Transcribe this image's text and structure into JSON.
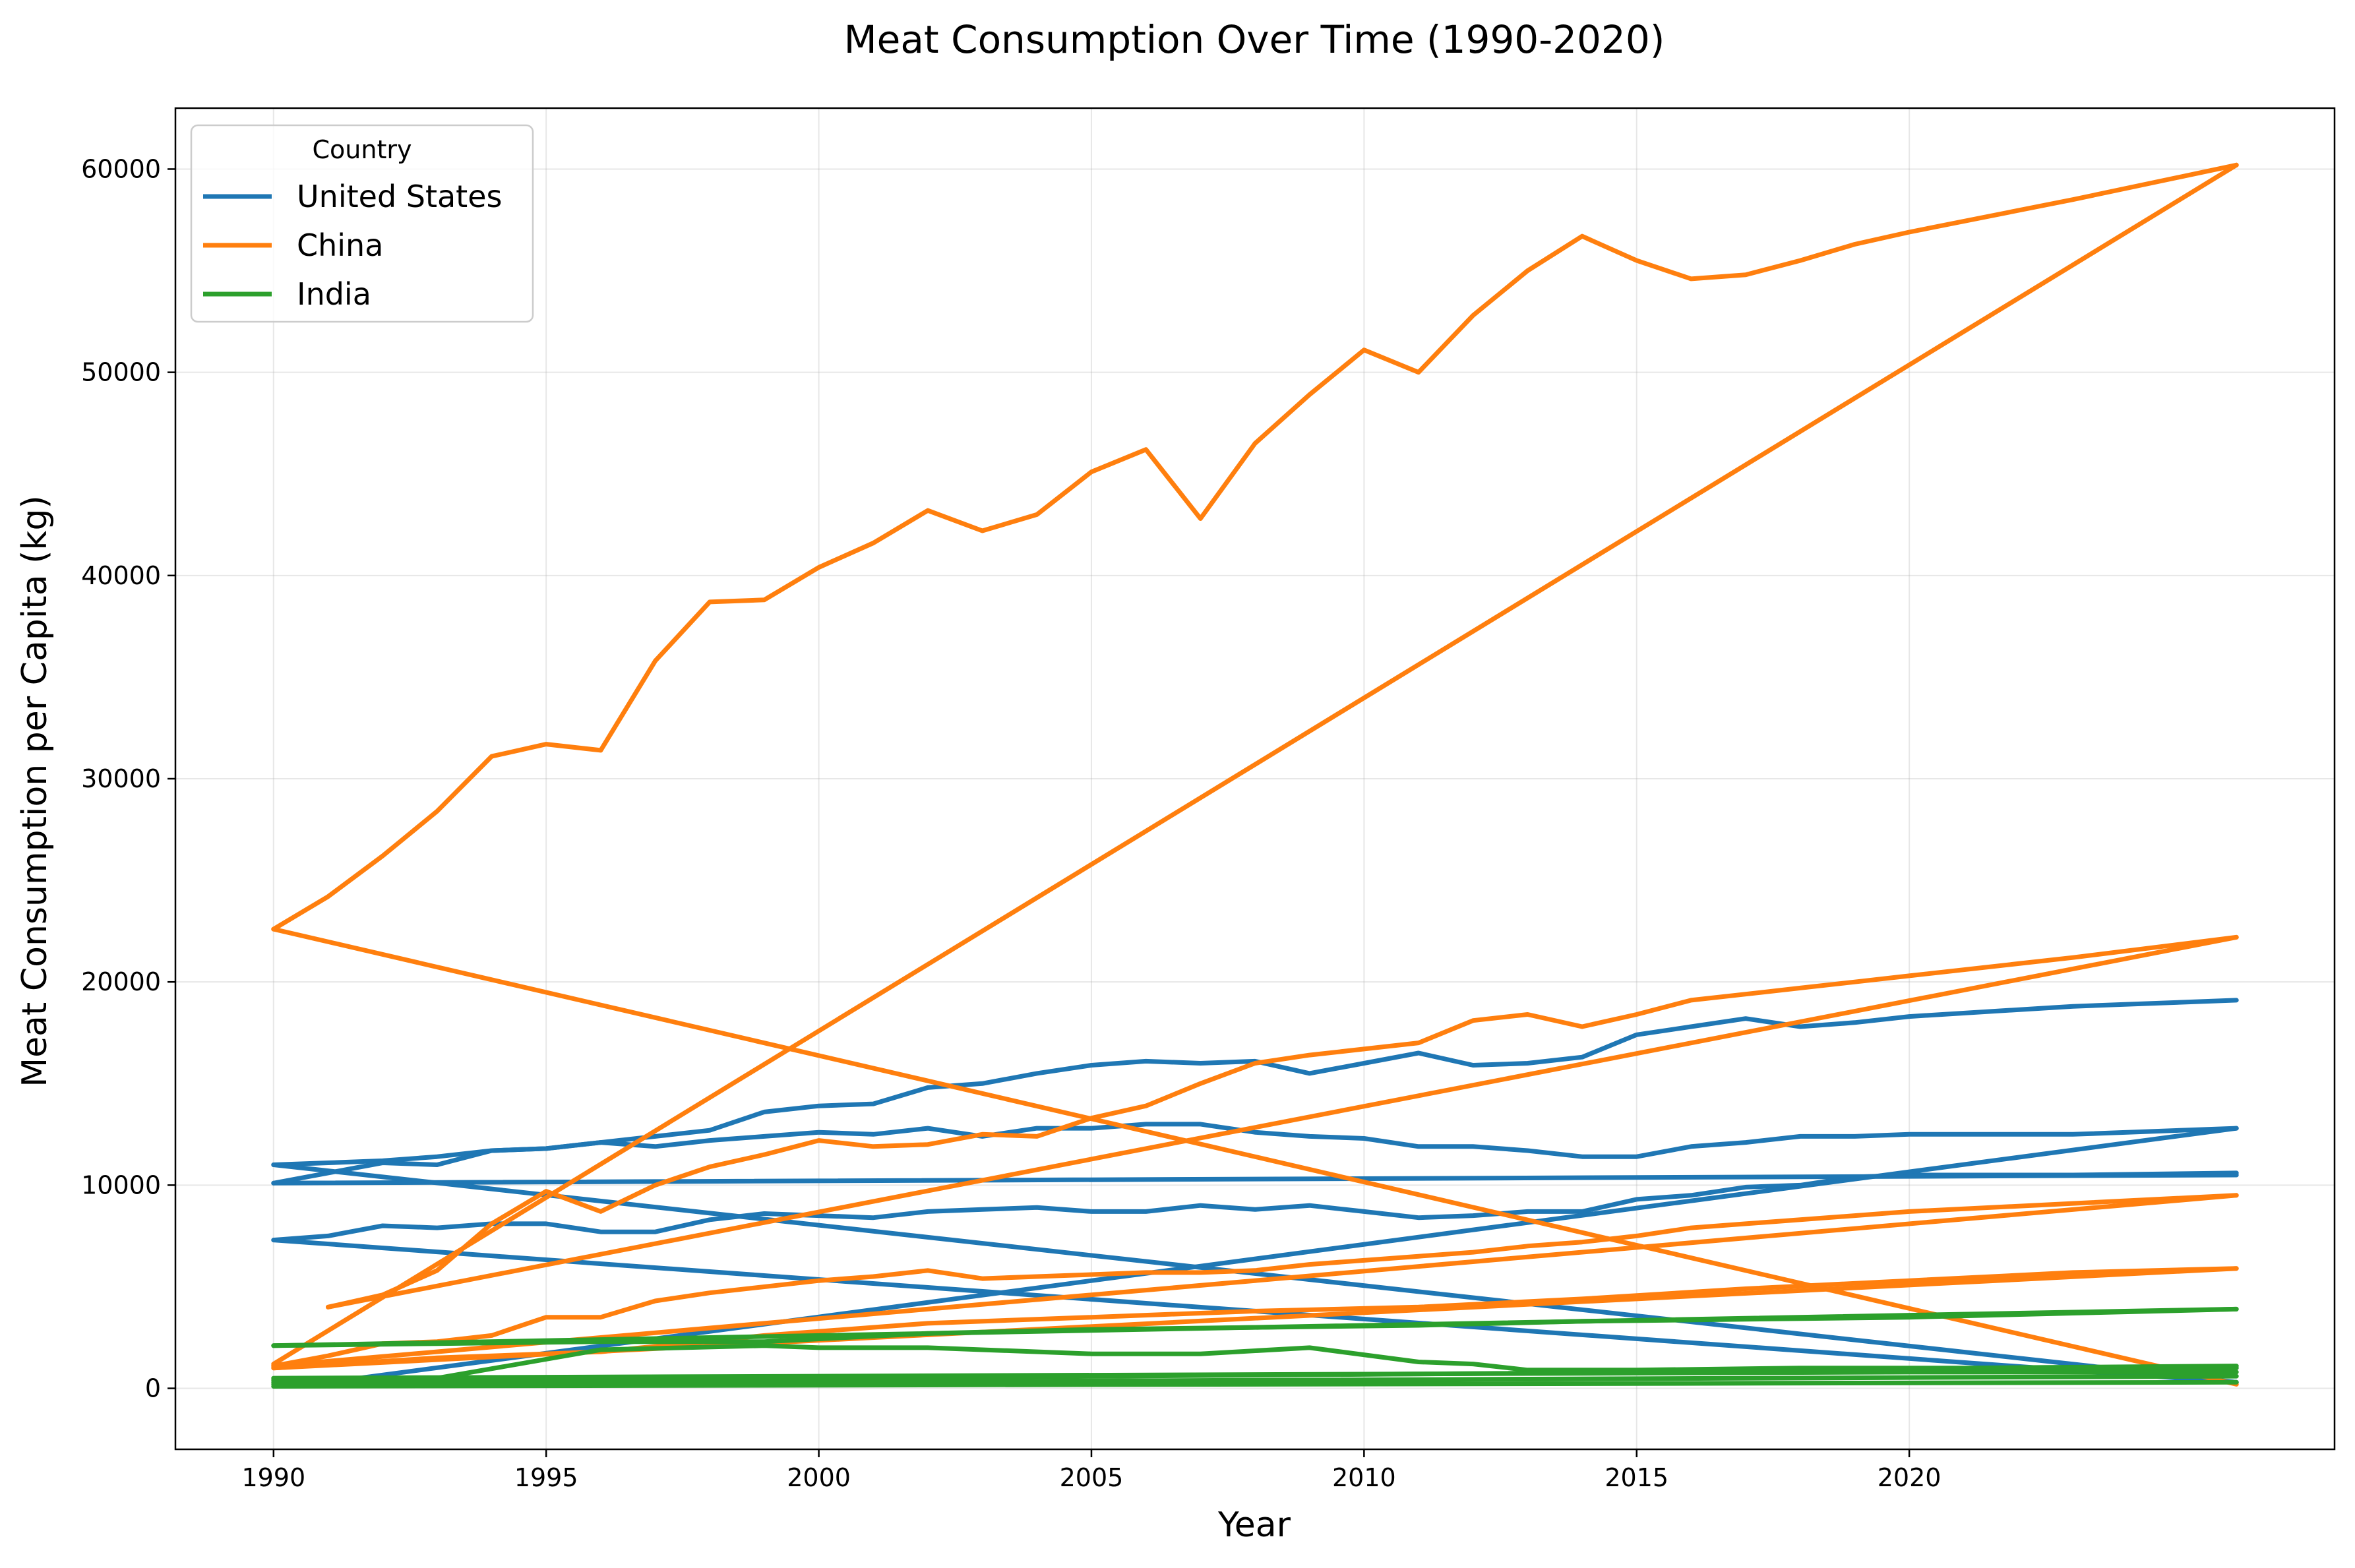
{
  "chart_data": {
    "type": "line",
    "title": "Meat Consumption Over Time (1990-2020)",
    "xlabel": "Year",
    "ylabel": "Meat Consumption per Capita (kg)",
    "xlim": [
      1988.2,
      2027.8
    ],
    "ylim": [
      -3000,
      63000
    ],
    "x_ticks": [
      1990,
      1995,
      2000,
      2005,
      2010,
      2015,
      2020
    ],
    "x_tick_labels": [
      "1990",
      "1995",
      "2000",
      "2005",
      "2010",
      "2015",
      "2020"
    ],
    "y_ticks": [
      0,
      10000,
      20000,
      30000,
      40000,
      50000,
      60000
    ],
    "y_tick_labels": [
      "0",
      "10000",
      "20000",
      "30000",
      "40000",
      "50000",
      "60000"
    ],
    "grid": true,
    "legend": {
      "title": "Country",
      "position": "top-left",
      "entries": [
        {
          "label": "United States",
          "color": "#1f77b4"
        },
        {
          "label": "China",
          "color": "#ff7f0e"
        },
        {
          "label": "India",
          "color": "#2ca02c"
        }
      ]
    },
    "series": [
      {
        "name": "United States",
        "color": "#1f77b4",
        "x": [
          1990,
          1991,
          1992,
          1993,
          1994,
          1995,
          1996,
          1997,
          1998,
          1999,
          2000,
          2001,
          2002,
          2003,
          2004,
          2005,
          2006,
          2007,
          2008,
          2009,
          2010,
          2011,
          2012,
          2013,
          2014,
          2015,
          2016,
          2017,
          2018,
          2019,
          2020,
          2023,
          2026
        ],
        "y": [
          10100,
          10600,
          11100,
          11000,
          11700,
          11800,
          12100,
          11900,
          12200,
          12400,
          12600,
          12500,
          12800,
          12400,
          12800,
          12800,
          13000,
          13000,
          12600,
          12400,
          12300,
          11900,
          11900,
          11700,
          11400,
          11400,
          11900,
          12100,
          12400,
          12400,
          12500,
          12500,
          12800
        ]
      },
      {
        "name": "United States",
        "color": "#1f77b4",
        "x": [
          1990,
          1991,
          1992,
          1993,
          1994,
          1995,
          1996,
          1997,
          1998,
          1999,
          2000,
          2001,
          2002,
          2003,
          2004,
          2005,
          2006,
          2007,
          2008,
          2009,
          2010,
          2011,
          2012,
          2013,
          2014,
          2015,
          2016,
          2017,
          2018,
          2019,
          2020,
          2023,
          2026
        ],
        "y": [
          11000,
          11100,
          11200,
          11400,
          11700,
          11800,
          12100,
          12400,
          12700,
          13600,
          13900,
          14000,
          14800,
          15000,
          15500,
          15900,
          16100,
          16000,
          16100,
          15500,
          16000,
          16500,
          15900,
          16000,
          16300,
          17400,
          17800,
          18200,
          17800,
          18000,
          18300,
          18800,
          19100
        ]
      },
      {
        "name": "United States",
        "color": "#1f77b4",
        "x": [
          1990,
          1991,
          1992,
          1993,
          1994,
          1995,
          1996,
          1997,
          1998,
          1999,
          2000,
          2001,
          2002,
          2003,
          2004,
          2005,
          2006,
          2007,
          2008,
          2009,
          2010,
          2011,
          2012,
          2013,
          2014,
          2015,
          2016,
          2017,
          2018,
          2019,
          2020,
          2023,
          2026
        ],
        "y": [
          7300,
          7500,
          8000,
          7900,
          8100,
          8100,
          7700,
          7700,
          8300,
          8600,
          8500,
          8400,
          8700,
          8800,
          8900,
          8700,
          8700,
          9000,
          8800,
          9000,
          8700,
          8400,
          8500,
          8700,
          8700,
          9300,
          9500,
          9900,
          10000,
          10400,
          10500,
          10500,
          10600
        ]
      },
      {
        "name": "United States",
        "color": "#1f77b4",
        "x": [
          1990,
          2026
        ],
        "y": [
          10100,
          10500
        ]
      },
      {
        "name": "United States",
        "color": "#1f77b4",
        "x": [
          1990,
          2026
        ],
        "y": [
          11000,
          300
        ]
      },
      {
        "name": "United States",
        "color": "#1f77b4",
        "x": [
          1990,
          2026
        ],
        "y": [
          7300,
          300
        ]
      },
      {
        "name": "United States",
        "color": "#1f77b4",
        "x": [
          1991,
          2026
        ],
        "y": [
          300,
          12800
        ]
      },
      {
        "name": "China",
        "color": "#ff7f0e",
        "x": [
          1990,
          1991,
          1992,
          1993,
          1994,
          1995,
          1996,
          1997,
          1998,
          1999,
          2000,
          2001,
          2002,
          2003,
          2004,
          2005,
          2006,
          2007,
          2008,
          2009,
          2010,
          2011,
          2012,
          2013,
          2014,
          2015,
          2016,
          2017,
          2018,
          2019,
          2020,
          2023,
          2026
        ],
        "y": [
          22600,
          24200,
          26200,
          28400,
          31100,
          31700,
          31400,
          35800,
          38700,
          38800,
          40400,
          41600,
          43200,
          42200,
          43000,
          45100,
          46200,
          42800,
          46500,
          48900,
          51100,
          50000,
          52800,
          55000,
          56700,
          55500,
          54600,
          54800,
          55500,
          56300,
          56900,
          58500,
          60200
        ]
      },
      {
        "name": "China",
        "color": "#ff7f0e",
        "x": [
          1990,
          2026
        ],
        "y": [
          22600,
          200
        ]
      },
      {
        "name": "China",
        "color": "#ff7f0e",
        "x": [
          1990,
          2026
        ],
        "y": [
          1200,
          60200
        ]
      },
      {
        "name": "China",
        "color": "#ff7f0e",
        "x": [
          1991,
          1992,
          1993,
          1994,
          1995,
          1996,
          1997,
          1998,
          1999,
          2000,
          2001,
          2002,
          2003,
          2004,
          2005,
          2006,
          2007,
          2008,
          2009,
          2010,
          2011,
          2012,
          2013,
          2014,
          2015,
          2016,
          2017,
          2018,
          2019,
          2020,
          2023,
          2026
        ],
        "y": [
          4000,
          4600,
          5800,
          8100,
          9700,
          8700,
          10000,
          10900,
          11500,
          12200,
          11900,
          12000,
          12500,
          12400,
          13300,
          13900,
          15000,
          16000,
          16400,
          16700,
          17000,
          18100,
          18400,
          17800,
          18400,
          19100,
          19400,
          19700,
          20000,
          20300,
          21200,
          22200
        ]
      },
      {
        "name": "China",
        "color": "#ff7f0e",
        "x": [
          1991,
          2026
        ],
        "y": [
          4000,
          22200
        ]
      },
      {
        "name": "China",
        "color": "#ff7f0e",
        "x": [
          1990,
          1991,
          1992,
          1993,
          1994,
          1995,
          1996,
          1997,
          1998,
          1999,
          2000,
          2001,
          2002,
          2003,
          2004,
          2005,
          2006,
          2007,
          2008,
          2009,
          2010,
          2011,
          2012,
          2013,
          2014,
          2015,
          2016,
          2017,
          2018,
          2019,
          2020,
          2023,
          2026
        ],
        "y": [
          1100,
          1600,
          2200,
          2300,
          2600,
          3500,
          3500,
          4300,
          4700,
          5000,
          5300,
          5500,
          5800,
          5400,
          5500,
          5600,
          5700,
          5700,
          5800,
          6100,
          6300,
          6500,
          6700,
          7000,
          7200,
          7500,
          7900,
          8100,
          8300,
          8500,
          8700,
          9100,
          9500
        ]
      },
      {
        "name": "China",
        "color": "#ff7f0e",
        "x": [
          1990,
          2026
        ],
        "y": [
          1100,
          9500
        ]
      },
      {
        "name": "China",
        "color": "#ff7f0e",
        "x": [
          1990,
          1993,
          1996,
          1999,
          2002,
          2005,
          2008,
          2011,
          2014,
          2017,
          2020,
          2023,
          2026
        ],
        "y": [
          1000,
          1500,
          1800,
          2600,
          3200,
          3500,
          3800,
          4000,
          4400,
          4900,
          5300,
          5700,
          5900
        ]
      },
      {
        "name": "China",
        "color": "#ff7f0e",
        "x": [
          1990,
          2026
        ],
        "y": [
          1000,
          5900
        ]
      },
      {
        "name": "India",
        "color": "#2ca02c",
        "x": [
          1990,
          1993,
          1996,
          1999,
          2002,
          2005,
          2008,
          2011,
          2014,
          2017,
          2020,
          2023,
          2026
        ],
        "y": [
          2100,
          2200,
          2300,
          2300,
          2700,
          2900,
          3000,
          3100,
          3300,
          3400,
          3500,
          3700,
          3900
        ]
      },
      {
        "name": "India",
        "color": "#2ca02c",
        "x": [
          1990,
          2026
        ],
        "y": [
          2100,
          3900
        ]
      },
      {
        "name": "India",
        "color": "#2ca02c",
        "x": [
          1990,
          1993,
          1996,
          1999,
          2000,
          2002,
          2005,
          2007,
          2009,
          2011,
          2012,
          2013,
          2015,
          2018,
          2021,
          2026
        ],
        "y": [
          400,
          500,
          1900,
          2100,
          2000,
          2000,
          1700,
          1700,
          2000,
          1300,
          1200,
          900,
          900,
          1000,
          1000,
          1100
        ]
      },
      {
        "name": "India",
        "color": "#2ca02c",
        "x": [
          1990,
          2026
        ],
        "y": [
          300,
          1000
        ]
      },
      {
        "name": "India",
        "color": "#2ca02c",
        "x": [
          1990,
          2000,
          2010,
          2020,
          2026
        ],
        "y": [
          500,
          600,
          700,
          800,
          800
        ]
      },
      {
        "name": "India",
        "color": "#2ca02c",
        "x": [
          1990,
          2026
        ],
        "y": [
          200,
          600
        ]
      },
      {
        "name": "India",
        "color": "#2ca02c",
        "x": [
          1990,
          2026
        ],
        "y": [
          100,
          300
        ]
      }
    ]
  }
}
